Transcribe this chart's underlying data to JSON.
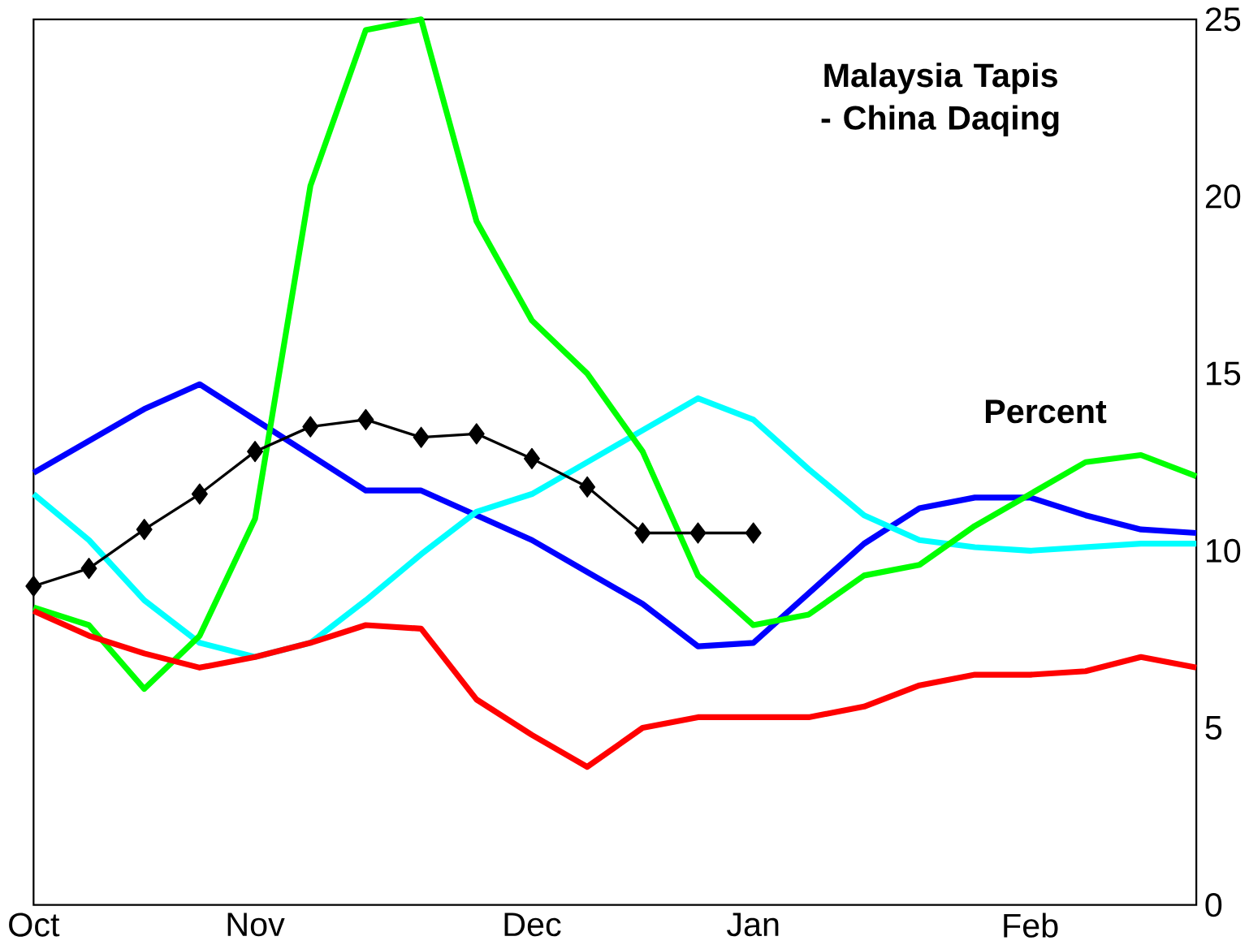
{
  "chart_data": {
    "type": "line",
    "title": "Malaysia Tapis - China Daqing",
    "ylabel": "Percent",
    "categories": [
      "Oct",
      null,
      null,
      null,
      "Nov",
      null,
      null,
      null,
      null,
      "Dec",
      null,
      null,
      null,
      "Jan",
      null,
      null,
      null,
      null,
      "Feb",
      null,
      null,
      null
    ],
    "ylim": [
      0,
      25
    ],
    "yticks": [
      0,
      5,
      10,
      15,
      20,
      25
    ],
    "series": [
      {
        "color": "#0000ff",
        "values": [
          12.2,
          13.1,
          14.0,
          14.7,
          13.7,
          12.7,
          11.7,
          11.7,
          11.0,
          10.3,
          9.4,
          8.5,
          7.3,
          7.4,
          8.8,
          10.2,
          11.2,
          11.5,
          11.5,
          11.0,
          10.6,
          10.5
        ]
      },
      {
        "color": "#00ffff",
        "values": [
          11.6,
          10.3,
          8.6,
          7.4,
          7.0,
          7.4,
          8.6,
          9.9,
          11.1,
          11.6,
          12.5,
          13.4,
          14.3,
          13.7,
          12.3,
          11.0,
          10.3,
          10.1,
          10.0,
          10.1,
          10.2,
          10.2
        ]
      },
      {
        "color": "#00ff00",
        "values": [
          8.4,
          7.9,
          6.1,
          7.6,
          10.9,
          20.3,
          24.7,
          25.0,
          19.3,
          16.5,
          15.0,
          12.8,
          9.3,
          7.9,
          8.2,
          9.3,
          9.6,
          10.7,
          11.6,
          12.5,
          12.7,
          12.1
        ]
      },
      {
        "color": "#ff0000",
        "values": [
          8.3,
          7.6,
          7.1,
          6.7,
          7.0,
          7.4,
          7.9,
          7.8,
          5.8,
          4.8,
          3.9,
          5.0,
          5.3,
          5.3,
          5.3,
          5.6,
          6.2,
          6.5,
          6.5,
          6.6,
          7.0,
          6.7
        ]
      },
      {
        "color": "#000000",
        "marker": "diamond",
        "values": [
          9.0,
          9.5,
          10.6,
          11.6,
          12.8,
          13.5,
          13.7,
          13.2,
          13.3,
          12.6,
          11.8,
          10.5,
          10.5,
          10.5,
          null,
          null,
          null,
          null,
          null,
          null,
          null,
          null
        ]
      }
    ]
  }
}
